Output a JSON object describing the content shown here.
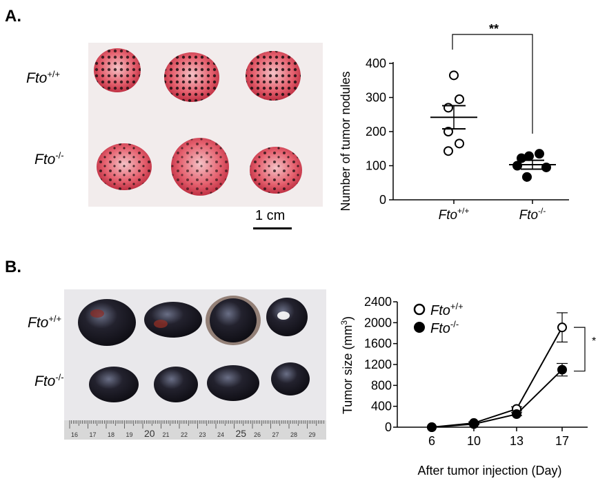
{
  "panels": [
    {
      "label": "A."
    },
    {
      "label": "B."
    }
  ],
  "panel_a": {
    "photo_row_labels": [
      {
        "base": "Fto",
        "sup": "+/+"
      },
      {
        "base": "Fto",
        "sup": "-/-"
      }
    ],
    "scale_bar_label": "1 cm"
  },
  "panel_b": {
    "photo_row_labels": [
      {
        "base": "Fto",
        "sup": "+/+"
      },
      {
        "base": "Fto",
        "sup": "-/-"
      }
    ],
    "ruler_labels": [
      "16",
      "17",
      "18",
      "19",
      "20",
      "21",
      "22",
      "23",
      "24",
      "25",
      "26",
      "27",
      "28",
      "29"
    ]
  },
  "chart_data": [
    {
      "type": "scatter",
      "ylabel": "Number of tumor nodules",
      "yticks": [
        0,
        100,
        200,
        300,
        400
      ],
      "ylim": [
        0,
        420
      ],
      "categories": [
        {
          "base": "Fto",
          "sup": "+/+"
        },
        {
          "base": "Fto",
          "sup": "-/-"
        }
      ],
      "series": [
        {
          "values": [
            365,
            295,
            270,
            200,
            165,
            143
          ],
          "mean": 242,
          "sem_lo": 208,
          "sem_hi": 276,
          "marker": "open"
        },
        {
          "values": [
            135,
            128,
            122,
            100,
            95,
            67
          ],
          "mean": 103,
          "sem_lo": 90,
          "sem_hi": 116,
          "marker": "filled"
        }
      ],
      "significance": "**",
      "colors": {
        "marker": "#000000"
      }
    },
    {
      "type": "line",
      "ylabel": "Tumor size (mm3)",
      "ylabel_parts": {
        "base": "Tumor size (mm",
        "sup": "3",
        "end": ")"
      },
      "xlabel": "After tumor injection (Day)",
      "x": [
        6,
        10,
        13,
        17
      ],
      "yticks": [
        0,
        400,
        800,
        1200,
        1600,
        2000,
        2400
      ],
      "ylim": [
        0,
        2400
      ],
      "legend": [
        {
          "base": "Fto",
          "sup": "+/+",
          "marker": "open"
        },
        {
          "base": "Fto",
          "sup": "-/-",
          "marker": "filled"
        }
      ],
      "series": [
        {
          "values": [
            0,
            80,
            350,
            1910
          ],
          "err": [
            0,
            20,
            40,
            280
          ],
          "marker": "open"
        },
        {
          "values": [
            0,
            60,
            250,
            1100
          ],
          "err": [
            0,
            15,
            30,
            120
          ],
          "marker": "filled"
        }
      ],
      "significance": "*"
    }
  ]
}
